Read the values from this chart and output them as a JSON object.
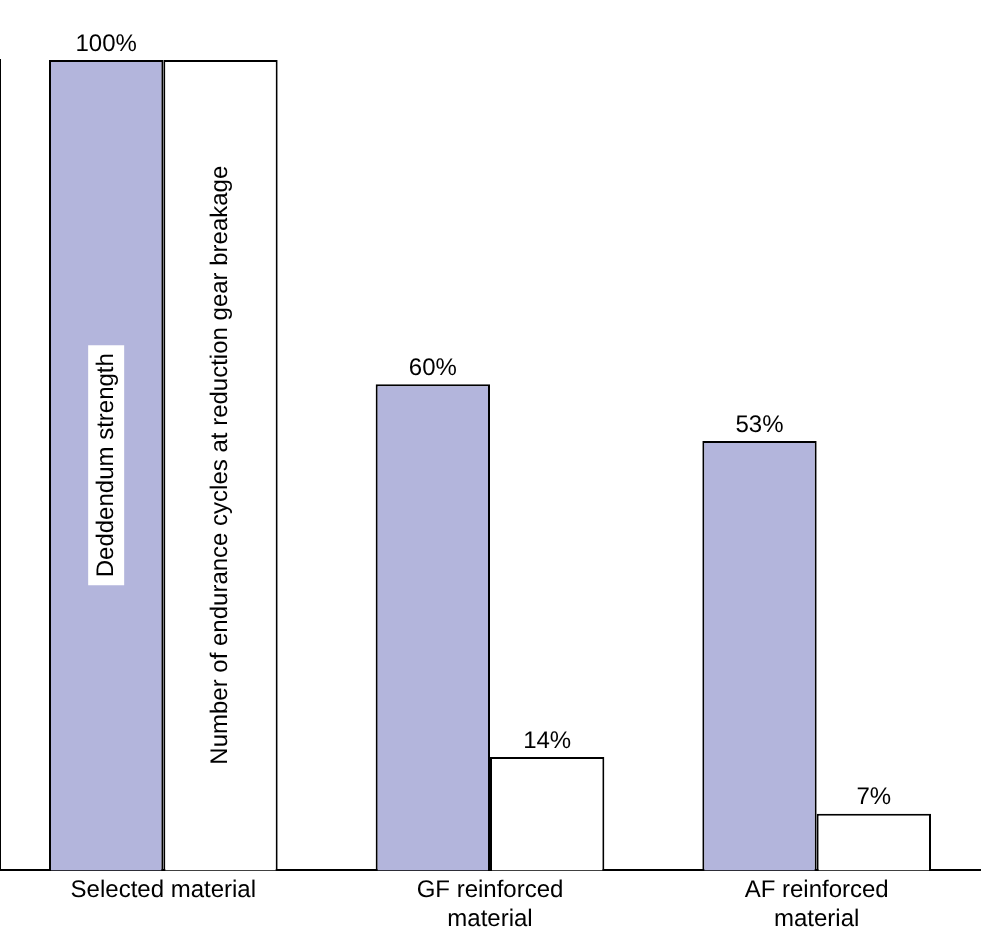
{
  "chart_data": {
    "type": "bar",
    "categories": [
      "Selected material",
      "GF reinforced material",
      "AF reinforced material"
    ],
    "series": [
      {
        "name": "Deddendum strength",
        "color": "#b3b5dc",
        "values": [
          100,
          60,
          53
        ],
        "value_labels": [
          "100%",
          "60%",
          "53%"
        ]
      },
      {
        "name": "Number of endurance cycles at reduction gear breakage",
        "color": "#ffffff",
        "values": [
          100,
          14,
          7
        ],
        "value_labels": [
          null,
          "14%",
          "7%"
        ]
      }
    ],
    "grid": false,
    "legend": false
  }
}
